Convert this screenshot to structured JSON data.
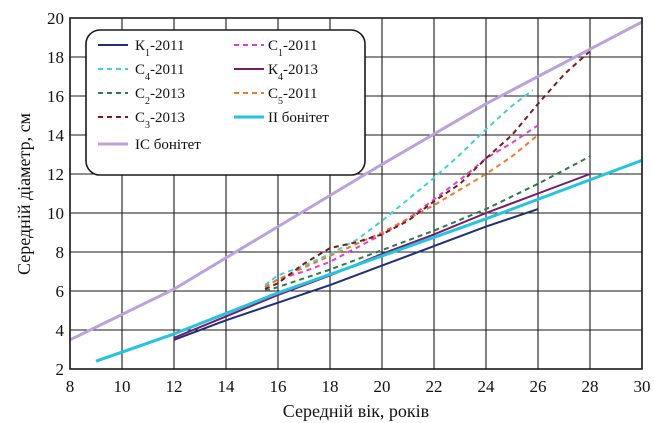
{
  "chart_data": {
    "type": "line",
    "xlabel": "Середній вік, років",
    "ylabel": "Середній діаметр, см",
    "xlim": [
      8,
      30
    ],
    "ylim": [
      2,
      20
    ],
    "xticks": [
      8,
      10,
      12,
      14,
      16,
      18,
      20,
      22,
      24,
      26,
      28,
      30
    ],
    "yticks": [
      2,
      4,
      6,
      8,
      10,
      12,
      14,
      16,
      18,
      20
    ],
    "grid": true,
    "legend_position": "top-left",
    "series": [
      {
        "name_main": "К",
        "name_sub": "1",
        "name_rest": "-2011",
        "color": "#1f2f7a",
        "dash": "solid",
        "x": [
          12,
          14,
          16,
          18,
          20,
          22,
          24,
          26
        ],
        "y": [
          3.5,
          4.5,
          5.4,
          6.3,
          7.3,
          8.3,
          9.3,
          10.2
        ]
      },
      {
        "name_main": "С",
        "name_sub": "1",
        "name_rest": "-2011",
        "color": "#e040d0",
        "dash": "dashed",
        "x": [
          15.5,
          16,
          17,
          18,
          19,
          20,
          21,
          22,
          23,
          24,
          25,
          26
        ],
        "y": [
          6.2,
          6.6,
          7.0,
          7.5,
          8.2,
          8.9,
          9.7,
          10.7,
          11.7,
          12.8,
          13.6,
          14.5
        ]
      },
      {
        "name_main": "С",
        "name_sub": "4",
        "name_rest": "-2011",
        "color": "#3ad6d6",
        "dash": "dashed",
        "x": [
          15.5,
          16,
          17,
          18,
          19,
          20,
          21,
          22,
          23,
          24,
          25,
          25.8
        ],
        "y": [
          6.3,
          6.8,
          7.3,
          7.9,
          8.6,
          9.6,
          10.7,
          11.8,
          13.0,
          14.3,
          15.5,
          16.3
        ]
      },
      {
        "name_main": "К",
        "name_sub": "4",
        "name_rest": "-2013",
        "color": "#7a1a6e",
        "dash": "solid",
        "x": [
          12,
          14,
          16,
          18,
          20,
          22,
          24,
          26,
          28
        ],
        "y": [
          3.6,
          4.7,
          5.8,
          6.8,
          7.9,
          8.9,
          10.0,
          11.0,
          12.0
        ]
      },
      {
        "name_main": "С",
        "name_sub": "2",
        "name_rest": "-2013",
        "color": "#2a7a4a",
        "dash": "dashed",
        "x": [
          15.5,
          16,
          18,
          20,
          22,
          24,
          26,
          28
        ],
        "y": [
          6.0,
          6.2,
          7.1,
          8.1,
          9.1,
          10.2,
          11.5,
          12.9
        ]
      },
      {
        "name_main": "С",
        "name_sub": "5",
        "name_rest": "-2011",
        "color": "#f07a2a",
        "dash": "dashed",
        "x": [
          15.5,
          16,
          17,
          18,
          19,
          20,
          21,
          22,
          23,
          24,
          25,
          26
        ],
        "y": [
          6.2,
          6.6,
          7.2,
          7.8,
          8.4,
          9.0,
          9.7,
          10.4,
          11.2,
          12.0,
          12.9,
          14.0
        ]
      },
      {
        "name_main": "С",
        "name_sub": "3",
        "name_rest": "-2013",
        "color": "#7a1a1a",
        "dash": "dashed",
        "x": [
          15.5,
          16,
          17,
          18,
          19,
          20,
          21,
          22,
          23,
          24,
          25,
          26,
          27,
          28
        ],
        "y": [
          6.1,
          6.4,
          7.4,
          8.2,
          8.5,
          8.9,
          9.6,
          10.6,
          11.5,
          12.8,
          14.0,
          15.6,
          17.1,
          18.3
        ]
      },
      {
        "name_main": "II бонітет",
        "name_sub": "",
        "name_rest": "",
        "color": "#22c4e0",
        "dash": "solid",
        "width": 3,
        "x": [
          9,
          12,
          16,
          20,
          24,
          30
        ],
        "y": [
          2.4,
          3.8,
          5.9,
          7.8,
          9.7,
          12.7
        ]
      },
      {
        "name_main": "IС бонітет",
        "name_sub": "",
        "name_rest": "",
        "color": "#b9a2dd",
        "dash": "solid",
        "width": 3,
        "x": [
          8,
          12,
          16,
          20,
          24,
          28,
          30
        ],
        "y": [
          3.5,
          6.1,
          9.3,
          12.5,
          15.6,
          18.4,
          19.8
        ]
      }
    ]
  }
}
